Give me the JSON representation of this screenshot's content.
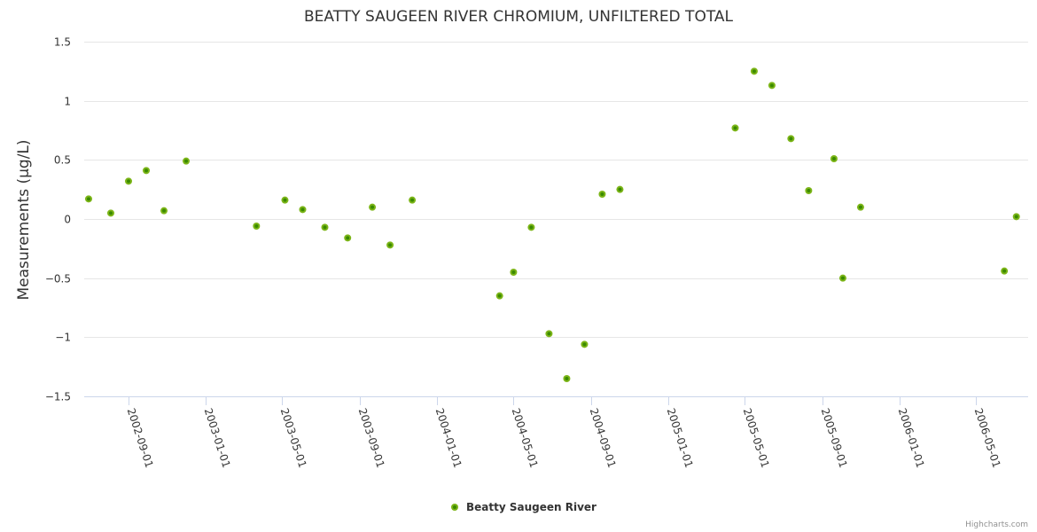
{
  "chart_data": {
    "type": "scatter",
    "title": "BEATTY SAUGEEN RIVER CHROMIUM, UNFILTERED TOTAL",
    "xlabel": "",
    "ylabel": "Measurements (μg/L)",
    "ylim": [
      -1.5,
      1.5
    ],
    "yticks": [
      1.5,
      1,
      0.5,
      0,
      -0.5,
      -1,
      -1.5
    ],
    "ytick_labels": [
      "1.5",
      "1",
      "0.5",
      "0",
      "−0.5",
      "−1",
      "−1.5"
    ],
    "xlim": [
      "2002-06-01",
      "2006-06-20"
    ],
    "xticks": [
      "2002-09-01",
      "2003-01-01",
      "2003-05-01",
      "2003-09-01",
      "2004-01-01",
      "2004-05-01",
      "2004-09-01",
      "2005-01-01",
      "2005-05-01",
      "2005-09-01",
      "2006-01-01",
      "2006-05-01"
    ],
    "grid": true,
    "legend_position": "bottom-center",
    "series": [
      {
        "name": "Beatty Saugeen River",
        "color": "#7cb518",
        "marker_inner_color": "#3a8a00",
        "points": [
          {
            "x": "2002-06-30",
            "y": 0.17
          },
          {
            "x": "2002-08-04",
            "y": 0.05
          },
          {
            "x": "2002-09-01",
            "y": 0.32
          },
          {
            "x": "2002-09-29",
            "y": 0.41
          },
          {
            "x": "2002-10-27",
            "y": 0.07
          },
          {
            "x": "2002-12-01",
            "y": 0.49
          },
          {
            "x": "2003-03-22",
            "y": -0.06
          },
          {
            "x": "2003-05-06",
            "y": 0.16
          },
          {
            "x": "2003-06-03",
            "y": 0.08
          },
          {
            "x": "2003-07-08",
            "y": -0.07
          },
          {
            "x": "2003-08-13",
            "y": -0.16
          },
          {
            "x": "2003-09-21",
            "y": 0.1
          },
          {
            "x": "2003-10-19",
            "y": -0.22
          },
          {
            "x": "2003-11-23",
            "y": 0.16
          },
          {
            "x": "2004-04-09",
            "y": -0.65
          },
          {
            "x": "2004-05-01",
            "y": -0.45
          },
          {
            "x": "2004-05-29",
            "y": -0.07
          },
          {
            "x": "2004-06-26",
            "y": -0.97
          },
          {
            "x": "2004-07-24",
            "y": -1.35
          },
          {
            "x": "2004-08-21",
            "y": -1.06
          },
          {
            "x": "2004-09-18",
            "y": 0.21
          },
          {
            "x": "2004-10-16",
            "y": 0.25
          },
          {
            "x": "2005-04-16",
            "y": 0.77
          },
          {
            "x": "2005-05-16",
            "y": 1.25
          },
          {
            "x": "2005-06-13",
            "y": 1.13
          },
          {
            "x": "2005-07-13",
            "y": 0.68
          },
          {
            "x": "2005-08-10",
            "y": 0.24
          },
          {
            "x": "2005-09-19",
            "y": 0.51
          },
          {
            "x": "2005-10-03",
            "y": -0.5
          },
          {
            "x": "2005-10-31",
            "y": 0.1
          },
          {
            "x": "2006-06-15",
            "y": -0.44
          },
          {
            "x": "2006-07-04",
            "y": 0.02
          }
        ]
      }
    ]
  },
  "legend": {
    "items": [
      {
        "label": "Beatty Saugeen River"
      }
    ]
  },
  "credits": "Highcharts.com"
}
